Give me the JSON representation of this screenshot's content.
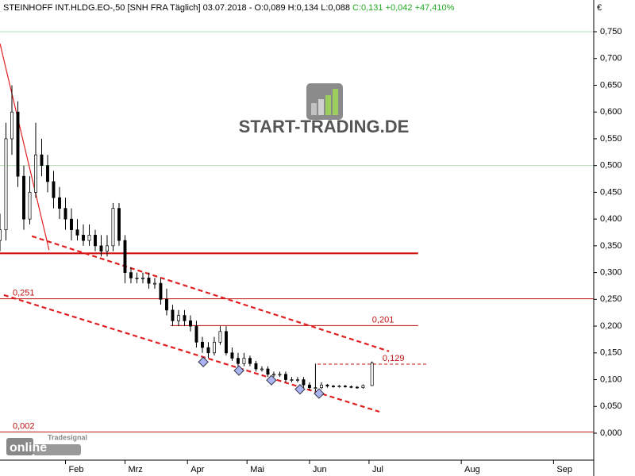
{
  "chart_data": {
    "type": "candlestick",
    "title": "STEINHOFF INT.HLDG.EO-,50 [SNH FRA  Täglich] 03.07.2018 - O:0,089 H:0,134 L:0,088",
    "title_change": "C:0,131 +0,042 +47,410%",
    "title_change_color": "#22aa22",
    "y_unit": "€",
    "watermark": "START-TRADING.DE",
    "logo_top": "Tradesignal",
    "logo_bottom": "online",
    "ylim": [
      -0.0504,
      0.8093
    ],
    "yticks": [
      {
        "value": 0,
        "label": "0,000"
      },
      {
        "value": 0.05,
        "label": "0,050"
      },
      {
        "value": 0.1,
        "label": "0,100"
      },
      {
        "value": 0.15,
        "label": "0,150"
      },
      {
        "value": 0.2,
        "label": "0,200"
      },
      {
        "value": 0.25,
        "label": "0,250"
      },
      {
        "value": 0.3,
        "label": "0,300"
      },
      {
        "value": 0.35,
        "label": "0,350"
      },
      {
        "value": 0.4,
        "label": "0,400"
      },
      {
        "value": 0.45,
        "label": "0,450"
      },
      {
        "value": 0.5,
        "label": "0,500"
      },
      {
        "value": 0.55,
        "label": "0,550"
      },
      {
        "value": 0.6,
        "label": "0,600"
      },
      {
        "value": 0.65,
        "label": "0,650"
      },
      {
        "value": 0.7,
        "label": "0,700"
      },
      {
        "value": 0.75,
        "label": "0,750"
      }
    ],
    "grid_values": [
      0.5,
      0.75
    ],
    "grid_color": "#b8d8b8",
    "xlim": [
      0,
      199.5
    ],
    "xticks": [
      {
        "value": 22,
        "label": "Feb"
      },
      {
        "value": 42,
        "label": "Mrz"
      },
      {
        "value": 63,
        "label": "Apr"
      },
      {
        "value": 83,
        "label": "Mai"
      },
      {
        "value": 104,
        "label": "Jun"
      },
      {
        "value": 124,
        "label": "Jul"
      },
      {
        "value": 155,
        "label": "Aug"
      },
      {
        "value": 186,
        "label": "Sep"
      }
    ],
    "x": [
      0,
      2,
      4,
      6,
      8,
      10,
      12,
      14,
      16,
      18,
      20,
      22,
      24,
      26,
      28,
      30,
      32,
      34,
      36,
      38,
      40,
      42,
      44,
      46,
      48,
      50,
      52,
      54,
      56,
      58,
      60,
      62,
      64,
      66,
      68,
      70,
      72,
      74,
      76,
      78,
      80,
      82,
      84,
      86,
      88,
      90,
      92,
      94,
      96,
      98,
      100,
      102,
      104,
      106,
      108,
      110,
      112,
      114,
      116,
      118,
      120,
      122,
      125
    ],
    "open": [
      0.36,
      0.38,
      0.55,
      0.6,
      0.48,
      0.4,
      0.45,
      0.52,
      0.5,
      0.47,
      0.44,
      0.42,
      0.4,
      0.38,
      0.37,
      0.36,
      0.37,
      0.35,
      0.34,
      0.35,
      0.42,
      0.36,
      0.3,
      0.29,
      0.29,
      0.29,
      0.28,
      0.28,
      0.25,
      0.23,
      0.21,
      0.22,
      0.21,
      0.2,
      0.17,
      0.16,
      0.15,
      0.17,
      0.19,
      0.15,
      0.14,
      0.13,
      0.14,
      0.13,
      0.12,
      0.12,
      0.11,
      0.11,
      0.11,
      0.1,
      0.1,
      0.1,
      0.09,
      0.085,
      0.085,
      0.09,
      0.088,
      0.087,
      0.088,
      0.087,
      0.086,
      0.085,
      0.089
    ],
    "high": [
      0.41,
      0.58,
      0.65,
      0.62,
      0.5,
      0.48,
      0.58,
      0.55,
      0.52,
      0.49,
      0.46,
      0.44,
      0.42,
      0.4,
      0.39,
      0.39,
      0.38,
      0.37,
      0.37,
      0.43,
      0.43,
      0.37,
      0.31,
      0.3,
      0.3,
      0.3,
      0.29,
      0.29,
      0.27,
      0.24,
      0.23,
      0.23,
      0.22,
      0.21,
      0.18,
      0.17,
      0.18,
      0.2,
      0.2,
      0.16,
      0.15,
      0.15,
      0.145,
      0.135,
      0.125,
      0.125,
      0.115,
      0.115,
      0.115,
      0.105,
      0.105,
      0.105,
      0.095,
      0.13,
      0.095,
      0.092,
      0.09,
      0.09,
      0.09,
      0.089,
      0.088,
      0.091,
      0.134
    ],
    "low": [
      0.34,
      0.36,
      0.52,
      0.46,
      0.38,
      0.39,
      0.44,
      0.48,
      0.45,
      0.42,
      0.4,
      0.38,
      0.36,
      0.36,
      0.35,
      0.35,
      0.34,
      0.33,
      0.33,
      0.34,
      0.35,
      0.28,
      0.28,
      0.28,
      0.28,
      0.27,
      0.27,
      0.24,
      0.22,
      0.2,
      0.2,
      0.2,
      0.19,
      0.16,
      0.15,
      0.14,
      0.145,
      0.165,
      0.145,
      0.135,
      0.125,
      0.125,
      0.125,
      0.115,
      0.115,
      0.105,
      0.105,
      0.105,
      0.095,
      0.095,
      0.095,
      0.085,
      0.08,
      0.078,
      0.082,
      0.085,
      0.085,
      0.085,
      0.085,
      0.084,
      0.083,
      0.083,
      0.088
    ],
    "close": [
      0.38,
      0.55,
      0.6,
      0.48,
      0.4,
      0.45,
      0.52,
      0.5,
      0.47,
      0.44,
      0.42,
      0.4,
      0.38,
      0.37,
      0.36,
      0.37,
      0.35,
      0.34,
      0.35,
      0.42,
      0.36,
      0.3,
      0.29,
      0.29,
      0.29,
      0.28,
      0.28,
      0.25,
      0.23,
      0.21,
      0.22,
      0.21,
      0.2,
      0.17,
      0.16,
      0.15,
      0.17,
      0.19,
      0.15,
      0.14,
      0.13,
      0.14,
      0.13,
      0.12,
      0.12,
      0.11,
      0.11,
      0.11,
      0.1,
      0.1,
      0.1,
      0.09,
      0.085,
      0.085,
      0.09,
      0.088,
      0.087,
      0.088,
      0.087,
      0.086,
      0.085,
      0.089,
      0.131
    ],
    "up_color": "#ffffff",
    "down_color": "#000000",
    "trend_lines": [
      {
        "x": [
          10.7,
          130.7
        ],
        "y": [
          0.368,
          0.153
        ],
        "style": "dashed",
        "color": "#e02020"
      },
      {
        "x": [
          1.3,
          127.5
        ],
        "y": [
          0.258,
          0.04
        ],
        "style": "dashed",
        "color": "#e02020"
      },
      {
        "x": [
          0,
          16.5
        ],
        "y": [
          0.728,
          0.342
        ],
        "style": "solid",
        "color": "#e02020"
      }
    ],
    "levels": [
      {
        "value": 0.336,
        "x": [
          0,
          140.5
        ],
        "style": "thick",
        "color": "#d01010"
      },
      {
        "value": 0.251,
        "label": "0,251",
        "x": [
          0,
          199.5
        ],
        "style": "solid",
        "color": "#c01010"
      },
      {
        "value": 0.201,
        "label": "0,201",
        "x": [
          57.3,
          140.5
        ],
        "style": "solid",
        "color": "#c01010"
      },
      {
        "value": 0.129,
        "label": "0,129",
        "x": [
          106.7,
          144
        ],
        "style": "dashed",
        "color": "#c01010"
      },
      {
        "value": 0.002,
        "label": "0,002",
        "x": [
          0,
          199.5
        ],
        "style": "solid",
        "color": "#c01010"
      }
    ],
    "markers": {
      "x": [
        68.3,
        80.3,
        91.2,
        100.8,
        107.2
      ],
      "y": [
        0.133,
        0.117,
        0.099,
        0.082,
        0.074
      ],
      "color": "#aab4f0"
    }
  }
}
